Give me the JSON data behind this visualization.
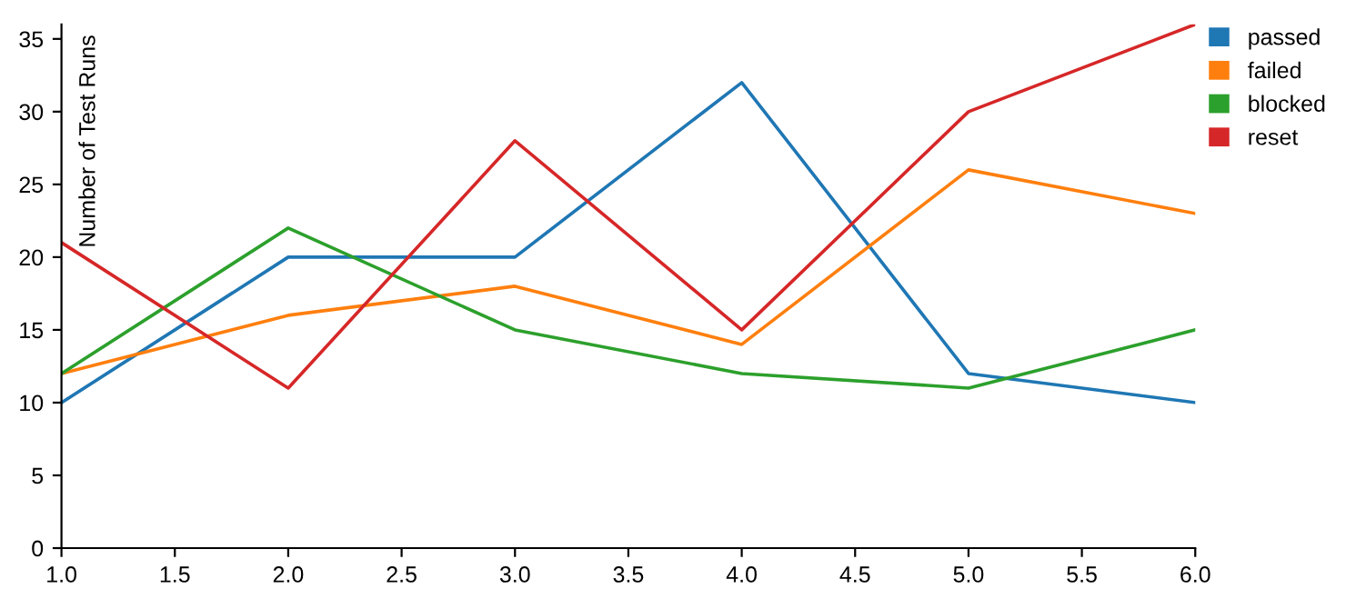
{
  "chart_data": {
    "type": "line",
    "ylabel": "Number of Test Runs",
    "x": [
      1,
      2,
      3,
      4,
      5,
      6
    ],
    "series": [
      {
        "name": "passed",
        "color": "#1f77b4",
        "values": [
          10,
          20,
          20,
          32,
          12,
          10
        ]
      },
      {
        "name": "failed",
        "color": "#ff7f0e",
        "values": [
          12,
          16,
          18,
          14,
          26,
          23
        ]
      },
      {
        "name": "blocked",
        "color": "#2ca02c",
        "values": [
          12,
          22,
          15,
          12,
          11,
          15
        ]
      },
      {
        "name": "reset",
        "color": "#d62728",
        "values": [
          21,
          11,
          28,
          15,
          30,
          36
        ]
      }
    ],
    "xlim": [
      1,
      6
    ],
    "xticks": [
      {
        "value": 1,
        "label": "1.0"
      },
      1.5,
      {
        "value": 2,
        "label": "2.0"
      },
      2.5,
      {
        "value": 3,
        "label": "3.0"
      },
      3.5,
      {
        "value": 4,
        "label": "4.0"
      },
      4.5,
      {
        "value": 5,
        "label": "5.0"
      },
      5.5,
      {
        "value": 6,
        "label": "6.0"
      }
    ],
    "ylim": [
      0,
      36
    ],
    "yticks": [
      0,
      5,
      10,
      15,
      20,
      25,
      30,
      35
    ],
    "grid": false,
    "legend": "top right",
    "marker": "none",
    "line_style": "solid"
  }
}
